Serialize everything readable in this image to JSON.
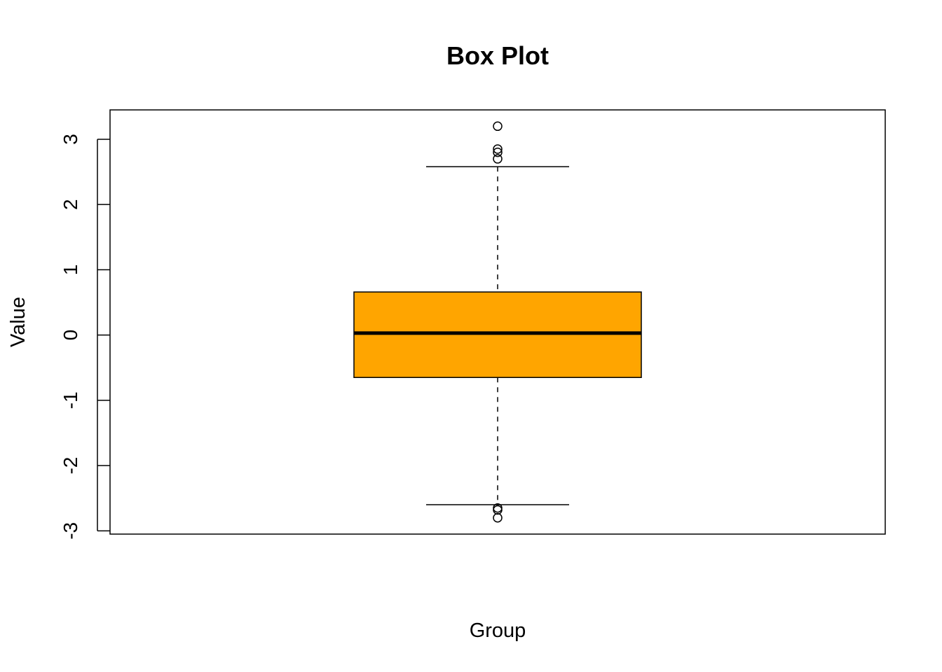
{
  "chart_data": {
    "type": "box",
    "title": "Box Plot",
    "xlabel": "Group",
    "ylabel": "Value",
    "ylim": [
      -3.05,
      3.45
    ],
    "yticks": [
      "-3",
      "-2",
      "-1",
      "0",
      "1",
      "2",
      "3"
    ],
    "ytick_values": [
      -3,
      -2,
      -1,
      0,
      1,
      2,
      3
    ],
    "grid": false,
    "series": [
      {
        "fill_color": "#FFA500",
        "stats": {
          "lower_whisker": -2.6,
          "q1": -0.65,
          "median": 0.03,
          "q3": 0.66,
          "upper_whisker": 2.58
        },
        "outliers": [
          3.2,
          2.85,
          2.8,
          2.7,
          -2.65,
          -2.68,
          -2.8
        ]
      }
    ]
  }
}
